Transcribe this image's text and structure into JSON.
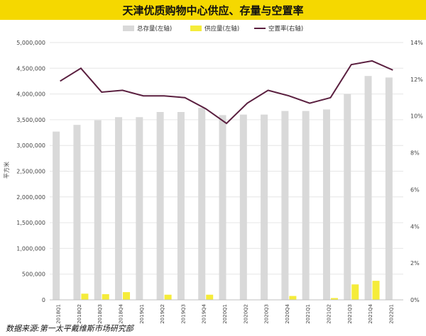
{
  "title": "天津优质购物中心供应、存量与空置率",
  "source": "数据来源:第一太平戴维斯市场研究部",
  "colors": {
    "stock": "#d9d9d9",
    "supply": "#f5ec3a",
    "vacancy": "#5a1f3f",
    "title_bar": "#f5d800"
  },
  "chart_data": {
    "type": "bar",
    "categories": [
      "2018Q1",
      "2018Q2",
      "2018Q3",
      "2018Q4",
      "2019Q1",
      "2019Q2",
      "2019Q3",
      "2019Q4",
      "2020Q1",
      "2020Q2",
      "2020Q3",
      "2020Q4",
      "2021Q1",
      "2021Q2",
      "2021Q3",
      "2021Q4",
      "2022Q1"
    ],
    "series": [
      {
        "name": "总存量(左轴)",
        "type": "bar",
        "axis": "left",
        "values": [
          3270000,
          3400000,
          3490000,
          3550000,
          3550000,
          3650000,
          3650000,
          3730000,
          3590000,
          3600000,
          3600000,
          3670000,
          3670000,
          3700000,
          4000000,
          4350000,
          4320000
        ]
      },
      {
        "name": "供应量(左轴)",
        "type": "bar",
        "axis": "left",
        "values": [
          0,
          120000,
          110000,
          150000,
          0,
          100000,
          0,
          100000,
          0,
          0,
          0,
          75000,
          0,
          35000,
          300000,
          370000,
          0
        ]
      },
      {
        "name": "空置率(右轴)",
        "type": "line",
        "axis": "right",
        "values": [
          11.9,
          12.6,
          11.3,
          11.4,
          11.1,
          11.1,
          11.0,
          10.4,
          9.6,
          10.7,
          11.4,
          11.1,
          10.7,
          11.0,
          12.8,
          13.0,
          12.5
        ]
      }
    ],
    "ylabel_left": "平方米",
    "ylim_left": [
      0,
      5000000
    ],
    "yticks_left": [
      "0",
      "500,000",
      "1,000,000",
      "1,500,000",
      "2,000,000",
      "2,500,000",
      "3,000,000",
      "3,500,000",
      "4,000,000",
      "4,500,000",
      "5,000,000"
    ],
    "ylim_right": [
      0,
      14
    ],
    "yticks_right": [
      "0%",
      "2%",
      "4%",
      "6%",
      "8%",
      "10%",
      "12%",
      "14%"
    ],
    "grid": true,
    "legend_position": "top-center"
  }
}
